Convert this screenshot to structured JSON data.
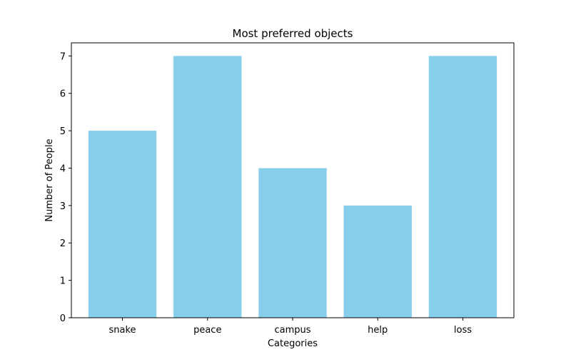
{
  "chart_data": {
    "type": "bar",
    "title": "Most preferred objects",
    "xlabel": "Categories",
    "ylabel": "Number of People",
    "categories": [
      "snake",
      "peace",
      "campus",
      "help",
      "loss"
    ],
    "values": [
      5,
      7,
      4,
      3,
      7
    ],
    "ylim": [
      0,
      7.35
    ],
    "yticks": [
      0,
      1,
      2,
      3,
      4,
      5,
      6,
      7
    ],
    "bar_color": "#87ceeb",
    "grid": false,
    "legend": "none"
  }
}
